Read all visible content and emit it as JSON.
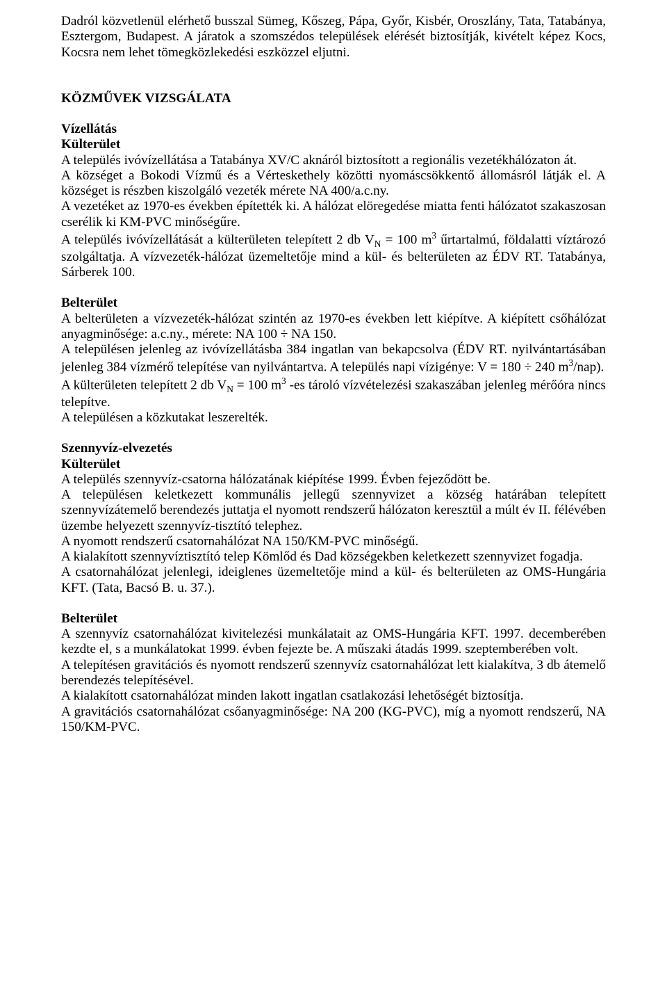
{
  "para1": "Dadról közvetlenül elérhető busszal Sümeg, Kőszeg, Pápa, Győr, Kisbér, Oroszlány, Tata, Tatabánya, Esztergom, Budapest. A járatok a szomszédos települések elérését biztosítják, kivételt képez Kocs, Kocsra nem lehet tömegközlekedési eszközzel eljutni.",
  "h1": "KÖZMŰVEK VIZSGÁLATA",
  "h2a": "Vízellátás",
  "h3a": "Külterület",
  "para2": "A település ivóvízellátása a Tatabánya XV/C aknáról biztosított a regionális vezetékhálózaton át.",
  "para3": "A községet a Bokodi Vízmű és a Vérteskethely közötti nyomáscsökkentő állomásról látják el. A községet is részben kiszolgáló vezeték mérete NA 400/a.c.ny.",
  "para4": "A vezetéket az 1970-es években építették ki. A hálózat elöregedése miatta fenti hálózatot szakaszosan cserélik ki KM-PVC minőségűre.",
  "para5a": "A település ivóvízellátását a külterületen telepített 2 db V",
  "para5sub": "N",
  "para5b": " = 100 m",
  "para5sup": "3",
  "para5c": " űrtartalmú, földalatti víztározó szolgáltatja. A vízvezeték-hálózat üzemeltetője mind a kül- és belterületen az ÉDV RT. Tatabánya, Sárberek 100.",
  "h3b": "Belterület",
  "para6": "A belterületen a vízvezeték-hálózat szintén az 1970-es években lett kiépítve. A kiépített csőhálózat anyagminősége: a.c.ny., mérete: NA 100 ÷ NA 150.",
  "para7a": "A településen jelenleg az ivóvízellátásba 384 ingatlan van bekapcsolva (ÉDV RT. nyilvántartásában jelenleg 384 vízmérő telepítése van nyilvántartva. A település napi vízigénye: V = 180 ÷ 240 m",
  "para7sup": "3",
  "para7b": "/nap).",
  "para8a": "A külterületen telepített 2 db V",
  "para8sub": "N",
  "para8b": " = 100 m",
  "para8sup": "3",
  "para8c": "  -es tároló vízvételezési szakaszában jelenleg mérőóra nincs telepítve.",
  "para9": "A településen a közkutakat leszerelték.",
  "h2b": "Szennyvíz-elvezetés",
  "h3c": "Külterület",
  "para10": "A település szennyvíz-csatorna hálózatának kiépítése 1999. Évben fejeződött be.",
  "para11": "A településen keletkezett kommunális jellegű szennyvizet a község határában telepített szennyvízátemelő berendezés juttatja el nyomott rendszerű hálózaton keresztül a múlt év II. félévében üzembe helyezett szennyvíz-tisztító telephez.",
  "para12": "A nyomott rendszerű csatornahálózat NA 150/KM-PVC minőségű.",
  "para13": "A kialakított szennyvíztisztító telep Kömlőd és Dad községekben keletkezett szennyvizet fogadja.",
  "para14": "A csatornahálózat jelenlegi, ideiglenes üzemeltetője mind a kül- és belterületen az OMS-Hungária KFT. (Tata, Bacsó B. u. 37.).",
  "h3d": "Belterület",
  "para15": "A szennyvíz csatornahálózat kivitelezési munkálatait az OMS-Hungária KFT. 1997. decemberében kezdte el, s a munkálatokat 1999. évben fejezte be. A műszaki átadás 1999. szeptemberében volt.",
  "para16": "A telepítésen gravitációs és nyomott rendszerű szennyvíz csatornahálózat lett kialakítva, 3 db átemelő berendezés telepítésével.",
  "para17": "A kialakított csatornahálózat minden lakott ingatlan csatlakozási lehetőségét biztosítja.",
  "para18": "A gravitációs csatornahálózat csőanyagminősége: NA 200 (KG-PVC), míg a nyomott rendszerű, NA 150/KM-PVC."
}
